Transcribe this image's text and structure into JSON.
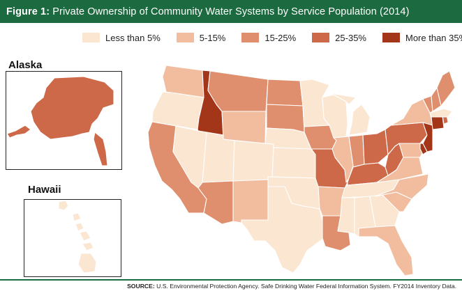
{
  "header": {
    "figure_label": "Figure 1:",
    "title": "Private Ownership of Community Water Systems by Service Population (2014)"
  },
  "legend": [
    {
      "label": "Less than 5%",
      "color": "#fbe6d2"
    },
    {
      "label": "5-15%",
      "color": "#f1bd9e"
    },
    {
      "label": "15-25%",
      "color": "#df8f6d"
    },
    {
      "label": "25-35%",
      "color": "#cd6848"
    },
    {
      "label": "More than 35%",
      "color": "#a33519"
    }
  ],
  "insets": {
    "alaska_label": "Alaska",
    "hawaii_label": "Hawaii"
  },
  "states": [
    {
      "id": "WA",
      "category": "5-15%"
    },
    {
      "id": "OR",
      "category": "Less than 5%"
    },
    {
      "id": "CA",
      "category": "15-25%"
    },
    {
      "id": "ID",
      "category": "More than 35%"
    },
    {
      "id": "NV",
      "category": "Less than 5%"
    },
    {
      "id": "MT",
      "category": "15-25%"
    },
    {
      "id": "WY",
      "category": "5-15%"
    },
    {
      "id": "UT",
      "category": "Less than 5%"
    },
    {
      "id": "AZ",
      "category": "15-25%"
    },
    {
      "id": "CO",
      "category": "Less than 5%"
    },
    {
      "id": "NM",
      "category": "5-15%"
    },
    {
      "id": "ND",
      "category": "15-25%"
    },
    {
      "id": "SD",
      "category": "15-25%"
    },
    {
      "id": "NE",
      "category": "Less than 5%"
    },
    {
      "id": "KS",
      "category": "Less than 5%"
    },
    {
      "id": "OK",
      "category": "Less than 5%"
    },
    {
      "id": "TX",
      "category": "Less than 5%"
    },
    {
      "id": "MN",
      "category": "Less than 5%"
    },
    {
      "id": "IA",
      "category": "15-25%"
    },
    {
      "id": "MO",
      "category": "25-35%"
    },
    {
      "id": "AR",
      "category": "5-15%"
    },
    {
      "id": "LA",
      "category": "15-25%"
    },
    {
      "id": "WI",
      "category": "Less than 5%"
    },
    {
      "id": "IL",
      "category": "5-15%"
    },
    {
      "id": "MI",
      "category": "Less than 5%"
    },
    {
      "id": "IN",
      "category": "15-25%"
    },
    {
      "id": "OH",
      "category": "25-35%"
    },
    {
      "id": "KY",
      "category": "25-35%"
    },
    {
      "id": "TN",
      "category": "Less than 5%"
    },
    {
      "id": "MS",
      "category": "Less than 5%"
    },
    {
      "id": "AL",
      "category": "Less than 5%"
    },
    {
      "id": "GA",
      "category": "Less than 5%"
    },
    {
      "id": "FL",
      "category": "5-15%"
    },
    {
      "id": "SC",
      "category": "5-15%"
    },
    {
      "id": "NC",
      "category": "5-15%"
    },
    {
      "id": "VA",
      "category": "5-15%"
    },
    {
      "id": "WV",
      "category": "25-35%"
    },
    {
      "id": "PA",
      "category": "25-35%"
    },
    {
      "id": "NY",
      "category": "5-15%"
    },
    {
      "id": "NJ",
      "category": "More than 35%"
    },
    {
      "id": "DE",
      "category": "More than 35%"
    },
    {
      "id": "MD",
      "category": "5-15%"
    },
    {
      "id": "CT",
      "category": "More than 35%"
    },
    {
      "id": "RI",
      "category": "25-35%"
    },
    {
      "id": "MA",
      "category": "Less than 5%"
    },
    {
      "id": "VT",
      "category": "15-25%"
    },
    {
      "id": "NH",
      "category": "15-25%"
    },
    {
      "id": "ME",
      "category": "15-25%"
    },
    {
      "id": "AK",
      "category": "25-35%"
    },
    {
      "id": "HI",
      "category": "Less than 5%"
    }
  ],
  "source": {
    "label": "SOURCE:",
    "text": "U.S. Environmental Protection Agency. Safe Drinking Water Federal Information System. FY2014 Inventory Data."
  }
}
